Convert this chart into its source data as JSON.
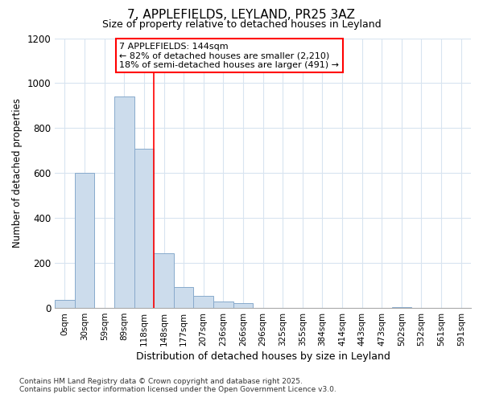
{
  "title": "7, APPLEFIELDS, LEYLAND, PR25 3AZ",
  "subtitle": "Size of property relative to detached houses in Leyland",
  "xlabel": "Distribution of detached houses by size in Leyland",
  "ylabel": "Number of detached properties",
  "bar_labels": [
    "0sqm",
    "30sqm",
    "59sqm",
    "89sqm",
    "118sqm",
    "148sqm",
    "177sqm",
    "207sqm",
    "236sqm",
    "266sqm",
    "296sqm",
    "325sqm",
    "355sqm",
    "384sqm",
    "414sqm",
    "443sqm",
    "473sqm",
    "502sqm",
    "532sqm",
    "561sqm",
    "591sqm"
  ],
  "bar_values": [
    35,
    600,
    0,
    940,
    710,
    245,
    95,
    55,
    30,
    20,
    0,
    0,
    0,
    0,
    0,
    0,
    0,
    5,
    0,
    0,
    0
  ],
  "bar_color": "#ccdcec",
  "bar_edgecolor": "#88aacc",
  "vline_x": 4.5,
  "vline_color": "red",
  "ylim": [
    0,
    1200
  ],
  "yticks": [
    0,
    200,
    400,
    600,
    800,
    1000,
    1200
  ],
  "annotation_text": "7 APPLEFIELDS: 144sqm\n← 82% of detached houses are smaller (2,210)\n18% of semi-detached houses are larger (491) →",
  "footer_line1": "Contains HM Land Registry data © Crown copyright and database right 2025.",
  "footer_line2": "Contains public sector information licensed under the Open Government Licence v3.0.",
  "background_color": "#ffffff",
  "grid_color": "#d8e4f0"
}
